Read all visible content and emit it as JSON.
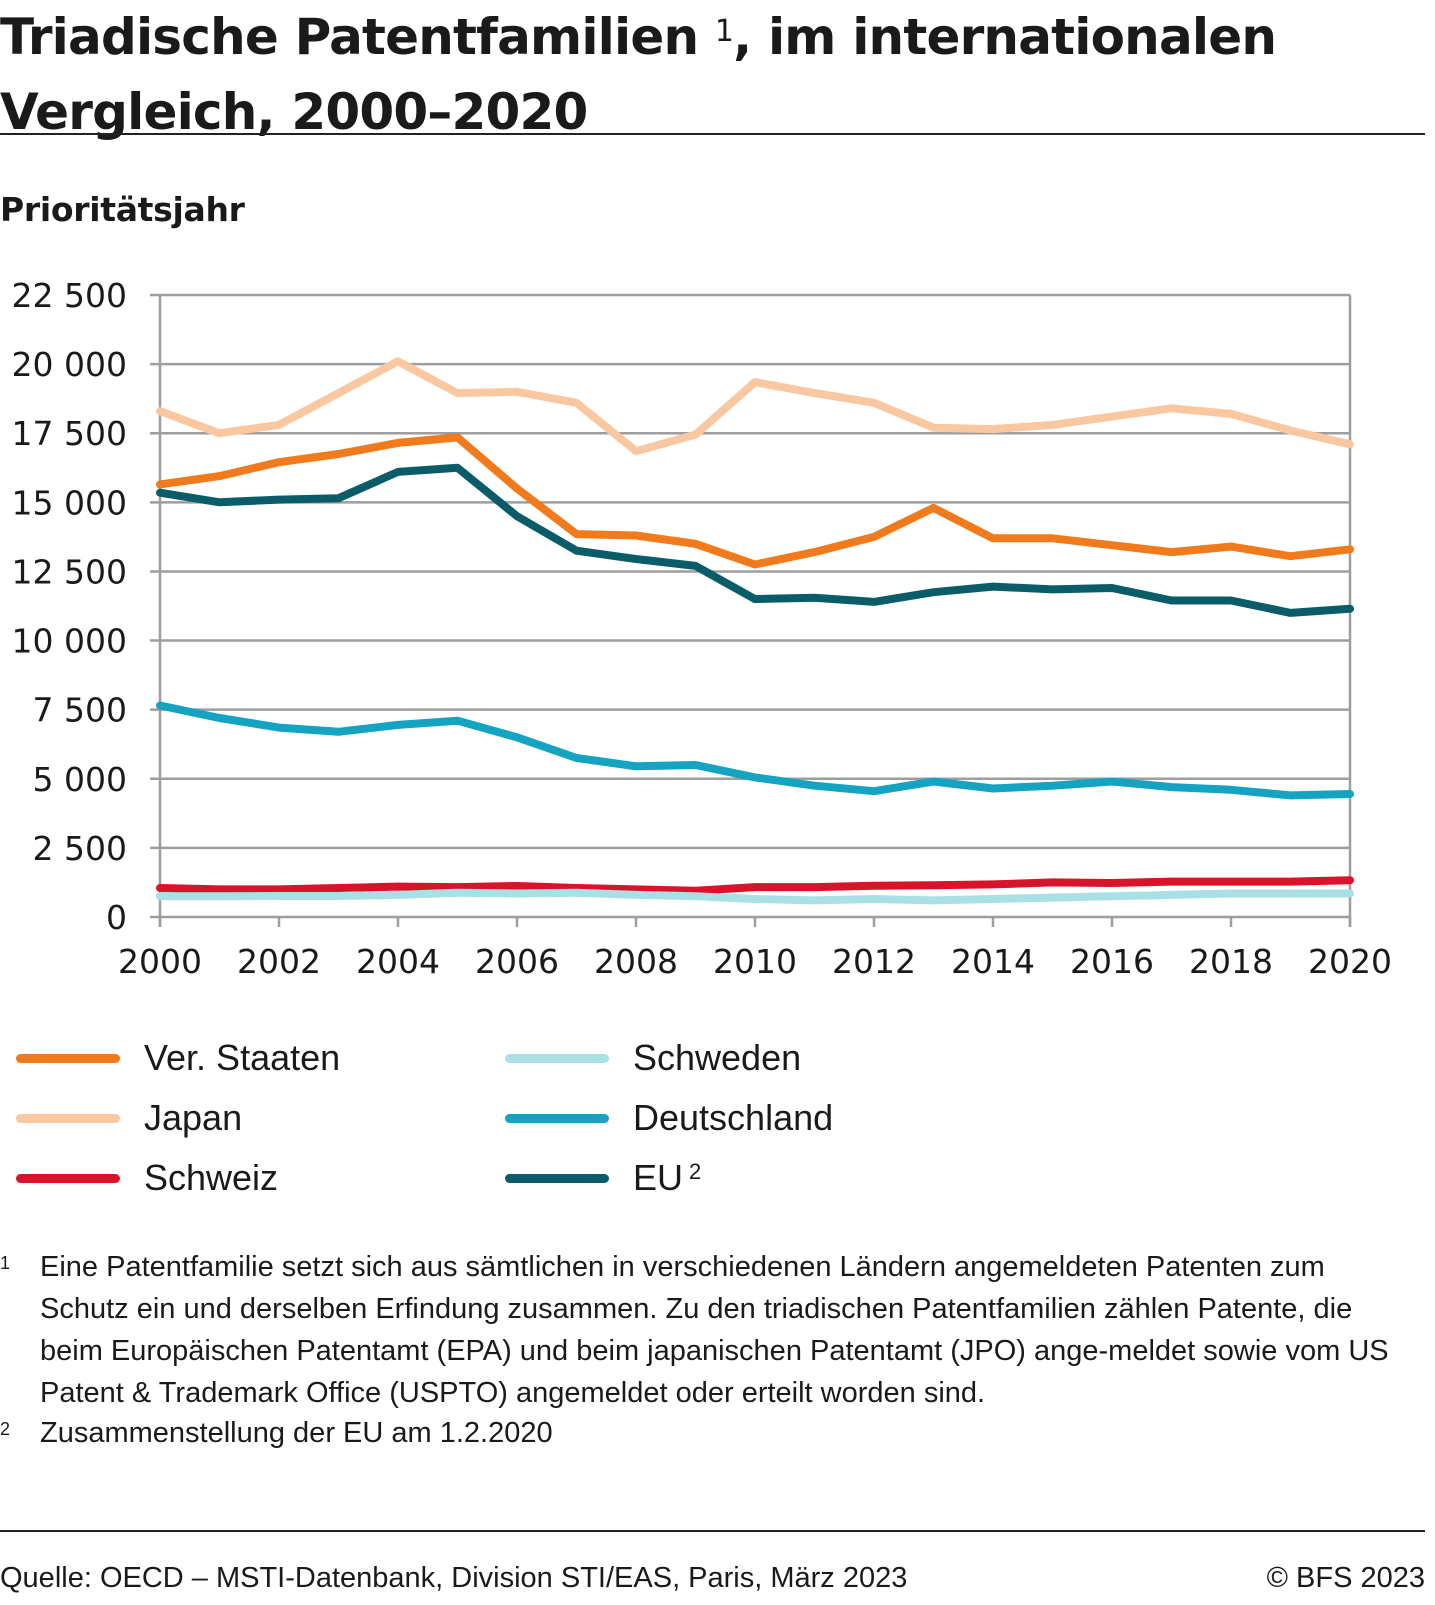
{
  "header": {
    "title_before": "Triadische Patentfamilien",
    "title_sup": "1",
    "title_after": ", im internationalen Vergleich, 2000–2020"
  },
  "subtitle": "Prioritätsjahr",
  "chart_data": {
    "type": "line",
    "title": "Triadische Patentfamilien, im internationalen Vergleich, 2000–2020",
    "xlabel": "",
    "ylabel": "",
    "x": [
      2000,
      2001,
      2002,
      2003,
      2004,
      2005,
      2006,
      2007,
      2008,
      2009,
      2010,
      2011,
      2012,
      2013,
      2014,
      2015,
      2016,
      2017,
      2018,
      2019,
      2020
    ],
    "xticks": [
      2000,
      2002,
      2004,
      2006,
      2008,
      2010,
      2012,
      2014,
      2016,
      2018,
      2020
    ],
    "xtick_labels": [
      "2000",
      "2002",
      "2004",
      "2006",
      "2008",
      "2010",
      "2012",
      "2014",
      "2016",
      "2018",
      "2020"
    ],
    "xlim": [
      2000,
      2020
    ],
    "ylim": [
      0,
      22500
    ],
    "yticks": [
      0,
      2500,
      5000,
      7500,
      10000,
      12500,
      15000,
      17500,
      20000,
      22500
    ],
    "ytick_labels": [
      "0",
      "2 500",
      "5 000",
      "7 500",
      "10 000",
      "12 500",
      "15 000",
      "17 500",
      "20 000",
      "22 500"
    ],
    "grid": true,
    "legend_position": "bottom",
    "series": [
      {
        "key": "us",
        "name": "Ver. Staaten",
        "color": "#f07a1c",
        "values": [
          15650,
          15950,
          16450,
          16750,
          17150,
          17350,
          15500,
          13850,
          13800,
          13500,
          12750,
          13200,
          13750,
          14800,
          13700,
          13700,
          13450,
          13200,
          13400,
          13050,
          13300
        ]
      },
      {
        "key": "jp",
        "name": "Japan",
        "color": "#f9c8a0",
        "values": [
          18300,
          17500,
          17800,
          18950,
          20100,
          18950,
          19000,
          18600,
          16850,
          17450,
          19350,
          18950,
          18600,
          17700,
          17650,
          17800,
          18100,
          18400,
          18200,
          17600,
          17100
        ]
      },
      {
        "key": "ch",
        "name": "Schweiz",
        "color": "#d9132a",
        "values": [
          1050,
          1000,
          1000,
          1050,
          1100,
          1080,
          1120,
          1050,
          1000,
          950,
          1080,
          1080,
          1130,
          1150,
          1180,
          1250,
          1230,
          1280,
          1280,
          1280,
          1330
        ]
      },
      {
        "key": "se",
        "name": "Schweden",
        "color": "#a8e0e6",
        "values": [
          750,
          750,
          760,
          760,
          800,
          880,
          850,
          880,
          800,
          750,
          650,
          600,
          650,
          600,
          650,
          700,
          750,
          800,
          850,
          850,
          850
        ]
      },
      {
        "key": "de",
        "name": "Deutschland",
        "color": "#14a3c0",
        "values": [
          7650,
          7200,
          6850,
          6700,
          6950,
          7100,
          6500,
          5750,
          5450,
          5500,
          5050,
          4750,
          4550,
          4900,
          4650,
          4750,
          4900,
          4700,
          4600,
          4400,
          4450
        ]
      },
      {
        "key": "eu",
        "name": "EU",
        "name_sup": "2",
        "color": "#0b5c69",
        "values": [
          15350,
          15000,
          15100,
          15150,
          16100,
          16250,
          14500,
          13250,
          12950,
          12700,
          11500,
          11550,
          11400,
          11750,
          11950,
          11850,
          11900,
          11450,
          11450,
          11000,
          11150
        ]
      }
    ]
  },
  "footnotes": [
    {
      "mark": "1",
      "text": "Eine Patentfamilie setzt sich aus sämtlichen in verschiedenen Ländern angemeldeten Patenten zum Schutz ein und derselben Erfindung zusammen. Zu den triadischen Patentfamilien zählen Patente, die beim Europäischen Patentamt (EPA) und beim japanischen Patentamt (JPO) ange-meldet sowie vom US Patent & Trademark Office (USPTO) angemeldet oder erteilt worden sind."
    },
    {
      "mark": "2",
      "text": "Zusammenstellung der EU am 1.2.2020"
    }
  ],
  "footer": {
    "source": "Quelle: OECD – MSTI-Datenbank, Division STI/EAS, Paris, März 2023",
    "copyright": "© BFS 2023"
  }
}
